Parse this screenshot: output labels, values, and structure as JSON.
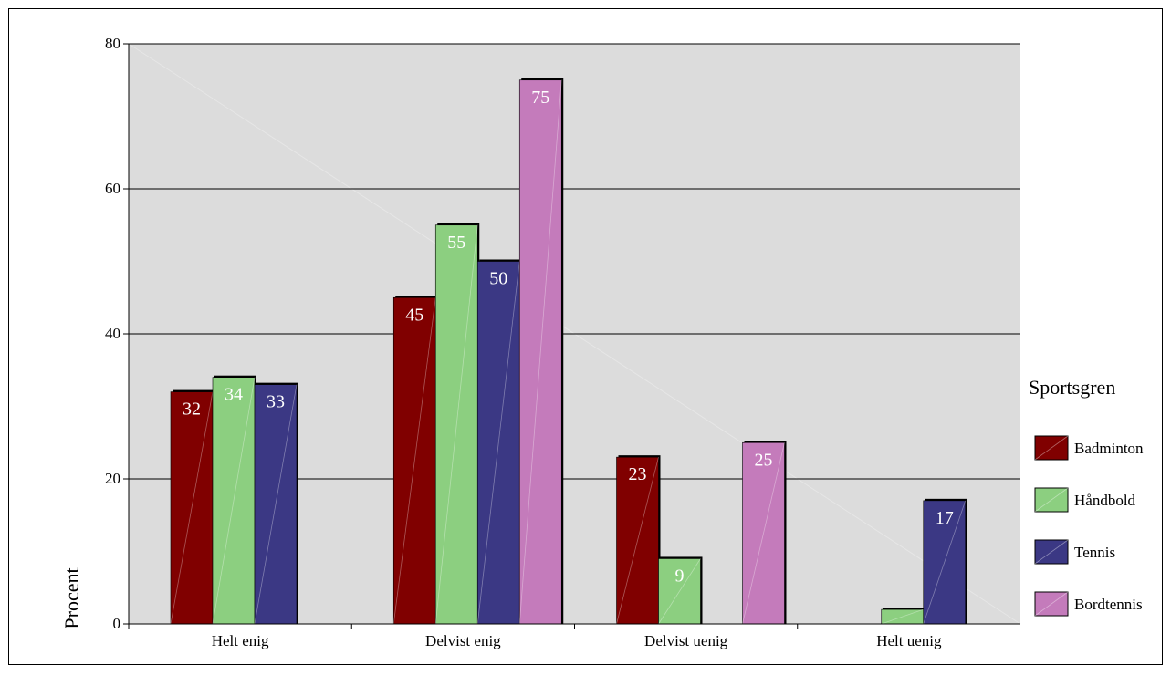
{
  "chart_data": {
    "type": "bar",
    "title": "",
    "xlabel": "",
    "ylabel": "Procent",
    "ylim": [
      0,
      80
    ],
    "yticks": [
      0,
      20,
      40,
      60,
      80
    ],
    "grid": true,
    "legend_title": "Sportsgren",
    "legend_position": "right",
    "categories": [
      "Helt enig",
      "Delvist enig",
      "Delvist uenig",
      "Helt uenig"
    ],
    "series": [
      {
        "name": "Badminton",
        "color": "#800000",
        "values": [
          32,
          45,
          23,
          null
        ],
        "labels": [
          "32",
          "45",
          "23",
          ""
        ]
      },
      {
        "name": "Håndbold",
        "color": "#8ccf80",
        "values": [
          34,
          55,
          9,
          2
        ],
        "labels": [
          "34",
          "55",
          "9",
          ""
        ]
      },
      {
        "name": "Tennis",
        "color": "#3b3884",
        "values": [
          33,
          50,
          null,
          17
        ],
        "labels": [
          "33",
          "50",
          "",
          "17"
        ]
      },
      {
        "name": "Bordtennis",
        "color": "#c47bbb",
        "values": [
          null,
          75,
          25,
          null
        ],
        "labels": [
          "",
          "75",
          "25",
          ""
        ]
      }
    ],
    "plot_background": "#dcdcdc"
  }
}
